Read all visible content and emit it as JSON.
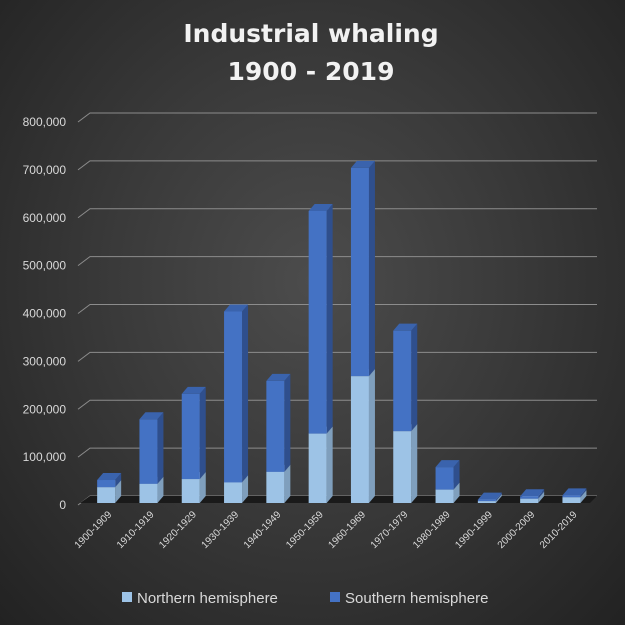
{
  "chart_data": {
    "type": "bar",
    "stacked": true,
    "three_d": true,
    "title": [
      "Industrial whaling",
      "1900 - 2019"
    ],
    "xlabel": "",
    "ylabel": "",
    "categories": [
      "1900-1909",
      "1910-1919",
      "1920-1929",
      "1930-1939",
      "1940-1949",
      "1950-1959",
      "1960-1969",
      "1970-1979",
      "1980-1989",
      "1990-1999",
      "2000-2009",
      "2010-2019"
    ],
    "series": [
      {
        "name": "Northern hemisphere",
        "color": "#9dc3e6",
        "values": [
          33000,
          40000,
          50000,
          43000,
          65000,
          145000,
          265000,
          150000,
          28000,
          4000,
          9000,
          12000
        ]
      },
      {
        "name": "Southern hemisphere",
        "color": "#4472c4",
        "values": [
          15000,
          135000,
          178000,
          357000,
          190000,
          465000,
          435000,
          210000,
          47000,
          3000,
          5000,
          4000
        ]
      }
    ],
    "yticks": [
      "0",
      "100,000",
      "200,000",
      "300,000",
      "400,000",
      "500,000",
      "600,000",
      "700,000",
      "800,000"
    ],
    "ylim": [
      0,
      800000
    ],
    "grid": true,
    "legend_position": "bottom"
  }
}
